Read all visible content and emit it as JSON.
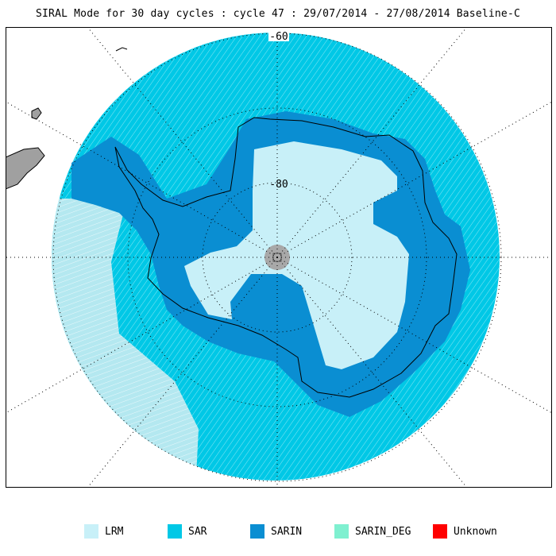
{
  "title": "SIRAL Mode for 30 day cycles : cycle 47 : 29/07/2014 - 27/08/2014 Baseline-C",
  "graticule_labels": {
    "lat_outer": "-60",
    "lat_inner": "-80"
  },
  "legend": [
    {
      "label": "LRM",
      "color": "#c8f0f8"
    },
    {
      "label": "SAR",
      "color": "#00c8e6"
    },
    {
      "label": "SARIN",
      "color": "#0a8ed2"
    },
    {
      "label": "SARIN_DEG",
      "color": "#7ff0d0"
    },
    {
      "label": "Unknown",
      "color": "#ff0000"
    }
  ],
  "colors": {
    "land": "#a0a0a0",
    "coast": "#000000",
    "pole_hole": "#a8a8a8",
    "lrm_ocean": "#b4e8f0"
  }
}
